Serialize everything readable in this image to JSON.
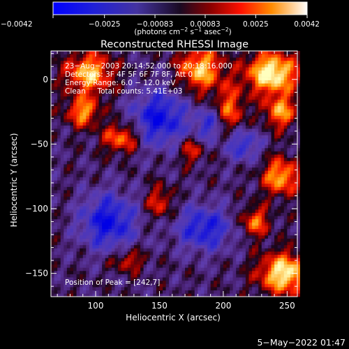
{
  "chart_data": {
    "type": "heatmap",
    "title": "Reconstructed RHESSI Image",
    "xlabel": "Heliocentric X (arcsec)",
    "ylabel": "Heliocentric Y (arcsec)",
    "xlim": [
      65,
      258
    ],
    "ylim": [
      -168,
      22
    ],
    "x_ticks": [
      100,
      150,
      200,
      250
    ],
    "y_ticks": [
      0,
      -50,
      -100,
      -150
    ],
    "colorbar": {
      "min": -0.0042,
      "max": 0.0042,
      "tick_values": [
        -0.0042,
        -0.0025,
        -0.00083,
        0.00083,
        0.0025,
        0.0042
      ],
      "tick_labels": [
        "−0.0042",
        "−0.0025",
        "−0.00083",
        "0.00083",
        "0.0025",
        "0.0042"
      ],
      "unit_parts": [
        "(photons cm",
        "−2",
        " s",
        "−1",
        " asec",
        "−2",
        ")"
      ]
    },
    "info_lines": [
      "23−Aug−2003 20:14:52.000 to 20:18:16.000",
      "Detectors: 3F 4F 5F 6F 7F 8F, Att 0",
      "Energy Range: 6.0 − 12.0 keV",
      "Clean     Total counts: 5.41E+03"
    ],
    "peak_text": "Position of Peak = [242,7]",
    "bright_regions": [
      {
        "x": 95,
        "y": 5,
        "sx": 13,
        "sy": 11,
        "a": 1.0
      },
      {
        "x": 90,
        "y": -25,
        "sx": 9,
        "sy": 8,
        "a": 0.85
      },
      {
        "x": 120,
        "y": -45,
        "sx": 10,
        "sy": 8,
        "a": 0.8
      },
      {
        "x": 182,
        "y": 8,
        "sx": 12,
        "sy": 12,
        "a": 1.0
      },
      {
        "x": 205,
        "y": -25,
        "sx": 8,
        "sy": 14,
        "a": 0.75
      },
      {
        "x": 238,
        "y": 5,
        "sx": 14,
        "sy": 11,
        "a": 1.3
      },
      {
        "x": 245,
        "y": -25,
        "sx": 9,
        "sy": 9,
        "a": 0.85
      },
      {
        "x": 245,
        "y": -75,
        "sx": 10,
        "sy": 10,
        "a": 0.95
      },
      {
        "x": 225,
        "y": -110,
        "sx": 8,
        "sy": 8,
        "a": 0.75
      },
      {
        "x": 248,
        "y": -150,
        "sx": 14,
        "sy": 11,
        "a": 1.2
      },
      {
        "x": 150,
        "y": -95,
        "sx": 7,
        "sy": 9,
        "a": 0.6
      },
      {
        "x": 125,
        "y": -140,
        "sx": 9,
        "sy": 6,
        "a": 0.55
      },
      {
        "x": 175,
        "y": -55,
        "sx": 7,
        "sy": 7,
        "a": 0.55
      }
    ],
    "dim_regions": [
      {
        "x": 150,
        "y": -30,
        "sx": 15,
        "sy": 15,
        "a": 0.9
      },
      {
        "x": 110,
        "y": -110,
        "sx": 15,
        "sy": 15,
        "a": 0.9
      },
      {
        "x": 185,
        "y": -115,
        "sx": 15,
        "sy": 12,
        "a": 0.8
      },
      {
        "x": 190,
        "y": -35,
        "sx": 9,
        "sy": 9,
        "a": 0.6
      },
      {
        "x": 215,
        "y": -50,
        "sx": 9,
        "sy": 9,
        "a": 0.7
      }
    ]
  },
  "timestamp": "5−May−2022 01:47"
}
